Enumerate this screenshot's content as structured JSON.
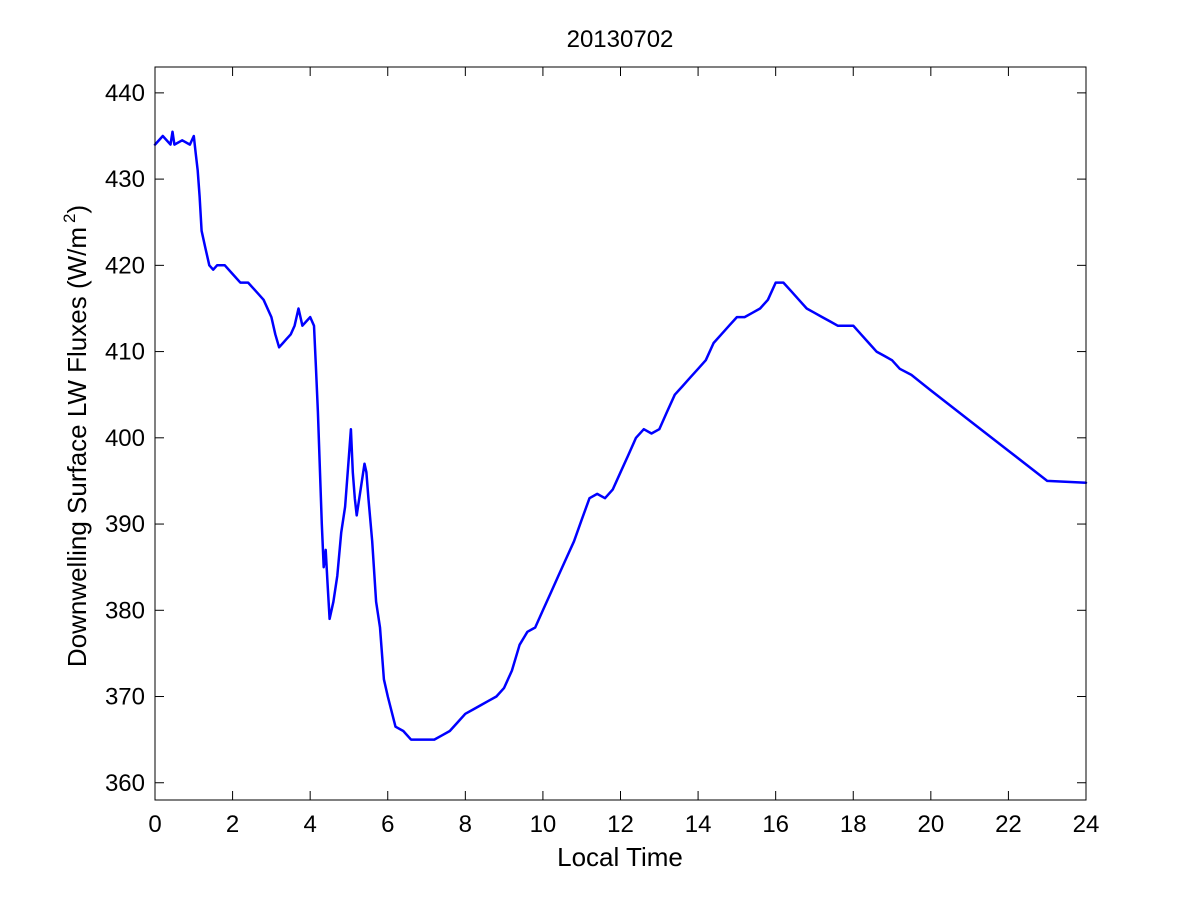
{
  "chart_data": {
    "type": "line",
    "title": "20130702",
    "xlabel": "Local Time",
    "ylabel_main": "Downwelling Surface LW Fluxes (W/m",
    "ylabel_sup": "2",
    "ylabel_close": ")",
    "xlim": [
      0,
      24
    ],
    "ylim": [
      358,
      443
    ],
    "xticks": [
      0,
      2,
      4,
      6,
      8,
      10,
      12,
      14,
      16,
      18,
      20,
      22,
      24
    ],
    "yticks": [
      360,
      370,
      380,
      390,
      400,
      410,
      420,
      430,
      440
    ],
    "line_color": "#0000ff",
    "grid": false,
    "series": [
      {
        "x": [
          0,
          0.2,
          0.4,
          0.45,
          0.5,
          0.7,
          0.9,
          1.0,
          1.05,
          1.1,
          1.15,
          1.2,
          1.3,
          1.4,
          1.5,
          1.6,
          1.8,
          2.0,
          2.2,
          2.4,
          2.6,
          2.8,
          3.0,
          3.1,
          3.2,
          3.3,
          3.4,
          3.5,
          3.6,
          3.7,
          3.8,
          3.9,
          4.0,
          4.1,
          4.15,
          4.2,
          4.3,
          4.35,
          4.4,
          4.45,
          4.5,
          4.6,
          4.7,
          4.8,
          4.9,
          5.0,
          5.05,
          5.1,
          5.15,
          5.2,
          5.3,
          5.4,
          5.45,
          5.5,
          5.6,
          5.7,
          5.8,
          5.9,
          6.0,
          6.2,
          6.4,
          6.6,
          6.8,
          7.0,
          7.2,
          7.4,
          7.6,
          7.8,
          8.0,
          8.2,
          8.4,
          8.6,
          8.8,
          9.0,
          9.2,
          9.4,
          9.6,
          9.8,
          10.0,
          10.2,
          10.4,
          10.6,
          10.8,
          11.0,
          11.2,
          11.4,
          11.6,
          11.8,
          12.0,
          12.2,
          12.4,
          12.6,
          12.8,
          13.0,
          13.2,
          13.4,
          13.6,
          13.8,
          14.0,
          14.2,
          14.4,
          14.6,
          14.8,
          15.0,
          15.2,
          15.4,
          15.6,
          15.8,
          16.0,
          16.2,
          16.4,
          16.6,
          16.8,
          17.0,
          17.2,
          17.4,
          17.6,
          17.8,
          18.0,
          18.2,
          18.4,
          18.6,
          18.8,
          19.0,
          19.2,
          19.5,
          20.0,
          21.0,
          22.0,
          23.0,
          24.0
        ],
        "y": [
          434,
          435,
          434,
          435.5,
          434,
          434.5,
          434,
          435,
          433,
          431,
          428,
          424,
          422,
          420,
          419.5,
          420,
          420,
          419,
          418,
          418,
          417,
          416,
          414,
          412,
          410.5,
          411,
          411.5,
          412,
          413,
          415,
          413,
          413.5,
          414,
          413,
          408,
          403,
          390,
          385,
          387,
          383,
          379,
          381,
          384,
          389,
          392,
          398,
          401,
          396,
          393,
          391,
          394,
          397,
          396,
          393,
          388,
          381,
          378,
          372,
          370,
          366.5,
          366,
          365,
          365,
          365,
          365,
          365.5,
          366,
          367,
          368,
          368.5,
          369,
          369.5,
          370,
          371,
          373,
          376,
          377.5,
          378,
          380,
          382,
          384,
          386,
          388,
          390.5,
          393,
          393.5,
          393,
          394,
          396,
          398,
          400,
          401,
          400.5,
          401,
          403,
          405,
          406,
          407,
          408,
          409,
          411,
          412,
          413,
          414,
          414,
          414.5,
          415,
          416,
          418,
          418,
          417,
          416,
          415,
          414.5,
          414,
          413.5,
          413,
          413,
          413,
          412,
          411,
          410,
          409.5,
          409,
          408,
          407.3,
          405.5,
          402,
          398.5,
          395,
          394.8
        ]
      }
    ]
  }
}
